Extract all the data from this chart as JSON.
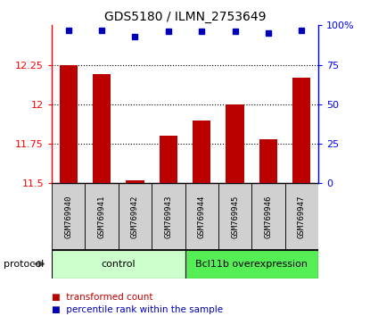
{
  "title": "GDS5180 / ILMN_2753649",
  "samples": [
    "GSM769940",
    "GSM769941",
    "GSM769942",
    "GSM769943",
    "GSM769944",
    "GSM769945",
    "GSM769946",
    "GSM769947"
  ],
  "bar_values": [
    12.25,
    12.19,
    11.52,
    11.8,
    11.9,
    12.0,
    11.78,
    12.17
  ],
  "percentile_values": [
    97,
    97,
    93,
    96,
    96,
    96,
    95,
    97
  ],
  "ylim_left": [
    11.5,
    12.5
  ],
  "ylim_right": [
    0,
    100
  ],
  "yticks_left": [
    11.5,
    11.75,
    12.0,
    12.25
  ],
  "ytick_labels_left": [
    "11.5",
    "11.75",
    "12",
    "12.25"
  ],
  "yticks_right": [
    0,
    25,
    50,
    75,
    100
  ],
  "ytick_labels_right": [
    "0",
    "25",
    "50",
    "75",
    "100%"
  ],
  "bar_color": "#bb0000",
  "dot_color": "#0000bb",
  "bar_width": 0.55,
  "control_label": "control",
  "overexpression_label": "Bcl11b overexpression",
  "control_color": "#ccffcc",
  "overexpression_color": "#55ee55",
  "protocol_label": "protocol",
  "legend_bar_label": "transformed count",
  "legend_dot_label": "percentile rank within the sample",
  "tick_label_fontsize": 8,
  "title_fontsize": 10,
  "sample_label_fontsize": 6.5,
  "protocol_fontsize": 8,
  "legend_fontsize": 7.5,
  "gray_box_color": "#d0d0d0"
}
